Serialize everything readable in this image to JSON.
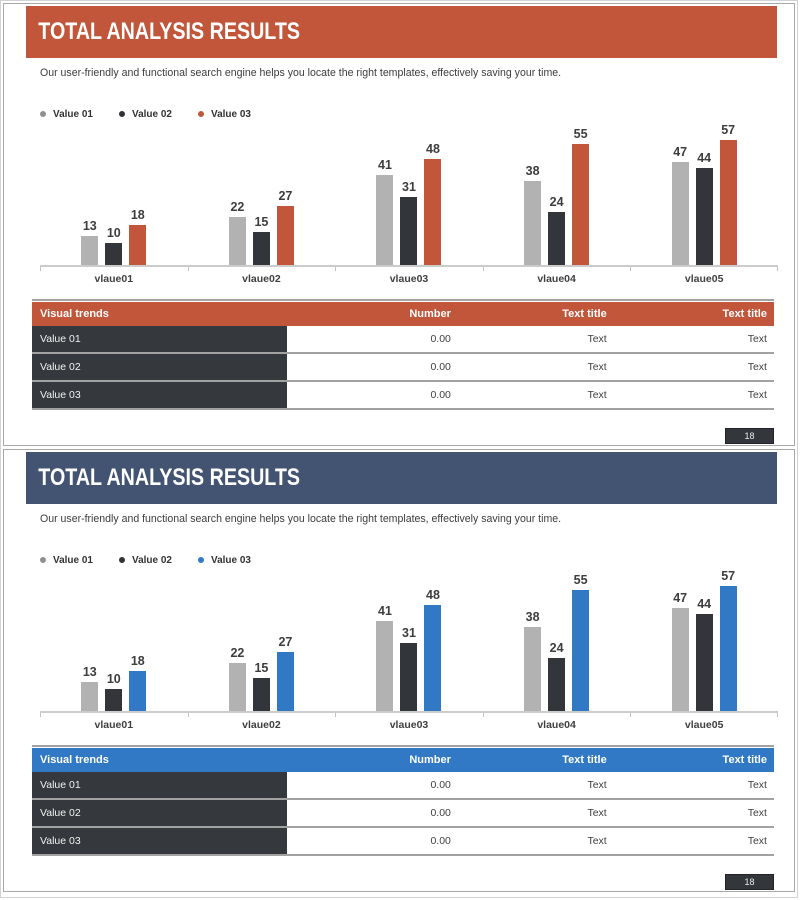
{
  "panels": [
    {
      "title": "TOTAL ANALYSIS RESULTS",
      "subtitle": "Our user-friendly and functional search engine helps you locate the right templates, effectively saving your time.",
      "legend": [
        {
          "label": "Value 01",
          "color": "#8f8f8f"
        },
        {
          "label": "Value 02",
          "color": "#2e3135"
        },
        {
          "label": "Value 03",
          "color": "#c2563a"
        }
      ],
      "colors": {
        "header_bg": "#c2563a",
        "table_header_bg": "#c2563a",
        "series": [
          "#b2b2b2",
          "#32353a",
          "#c2563a"
        ]
      },
      "table": {
        "headers": [
          "Visual trends",
          "Number",
          "Text title",
          "Text title"
        ],
        "rows": [
          [
            "Value 01",
            "0.00",
            "Text",
            "Text"
          ],
          [
            "Value 02",
            "0.00",
            "Text",
            "Text"
          ],
          [
            "Value 03",
            "0.00",
            "Text",
            "Text"
          ]
        ]
      },
      "page_number": "18"
    },
    {
      "title": "TOTAL ANALYSIS RESULTS",
      "subtitle": "Our user-friendly and functional search engine helps you locate the right templates, effectively saving your time.",
      "legend": [
        {
          "label": "Value 01",
          "color": "#8f8f8f"
        },
        {
          "label": "Value 02",
          "color": "#2e3135"
        },
        {
          "label": "Value 03",
          "color": "#3179c5"
        }
      ],
      "colors": {
        "header_bg": "#425472",
        "table_header_bg": "#3179c5",
        "series": [
          "#b2b2b2",
          "#32353a",
          "#3179c5"
        ]
      },
      "table": {
        "headers": [
          "Visual trends",
          "Number",
          "Text title",
          "Text title"
        ],
        "rows": [
          [
            "Value 01",
            "0.00",
            "Text",
            "Text"
          ],
          [
            "Value 02",
            "0.00",
            "Text",
            "Text"
          ],
          [
            "Value 03",
            "0.00",
            "Text",
            "Text"
          ]
        ]
      },
      "page_number": "18"
    }
  ],
  "chart_data": [
    {
      "type": "bar",
      "title": "",
      "categories": [
        "vlaue01",
        "vlaue02",
        "vlaue03",
        "vlaue04",
        "vlaue05"
      ],
      "series": [
        {
          "name": "Value 01",
          "values": [
            13,
            22,
            41,
            38,
            47
          ]
        },
        {
          "name": "Value 02",
          "values": [
            10,
            15,
            31,
            24,
            44
          ]
        },
        {
          "name": "Value 03",
          "values": [
            18,
            27,
            48,
            55,
            57
          ]
        }
      ],
      "ylim": [
        0,
        60
      ],
      "grid": false,
      "data_labels": true,
      "legend_position": "top-left"
    },
    {
      "type": "bar",
      "title": "",
      "categories": [
        "vlaue01",
        "vlaue02",
        "vlaue03",
        "vlaue04",
        "vlaue05"
      ],
      "series": [
        {
          "name": "Value 01",
          "values": [
            13,
            22,
            41,
            38,
            47
          ]
        },
        {
          "name": "Value 02",
          "values": [
            10,
            15,
            31,
            24,
            44
          ]
        },
        {
          "name": "Value 03",
          "values": [
            18,
            27,
            48,
            55,
            57
          ]
        }
      ],
      "ylim": [
        0,
        60
      ],
      "grid": false,
      "data_labels": true,
      "legend_position": "top-left"
    }
  ]
}
